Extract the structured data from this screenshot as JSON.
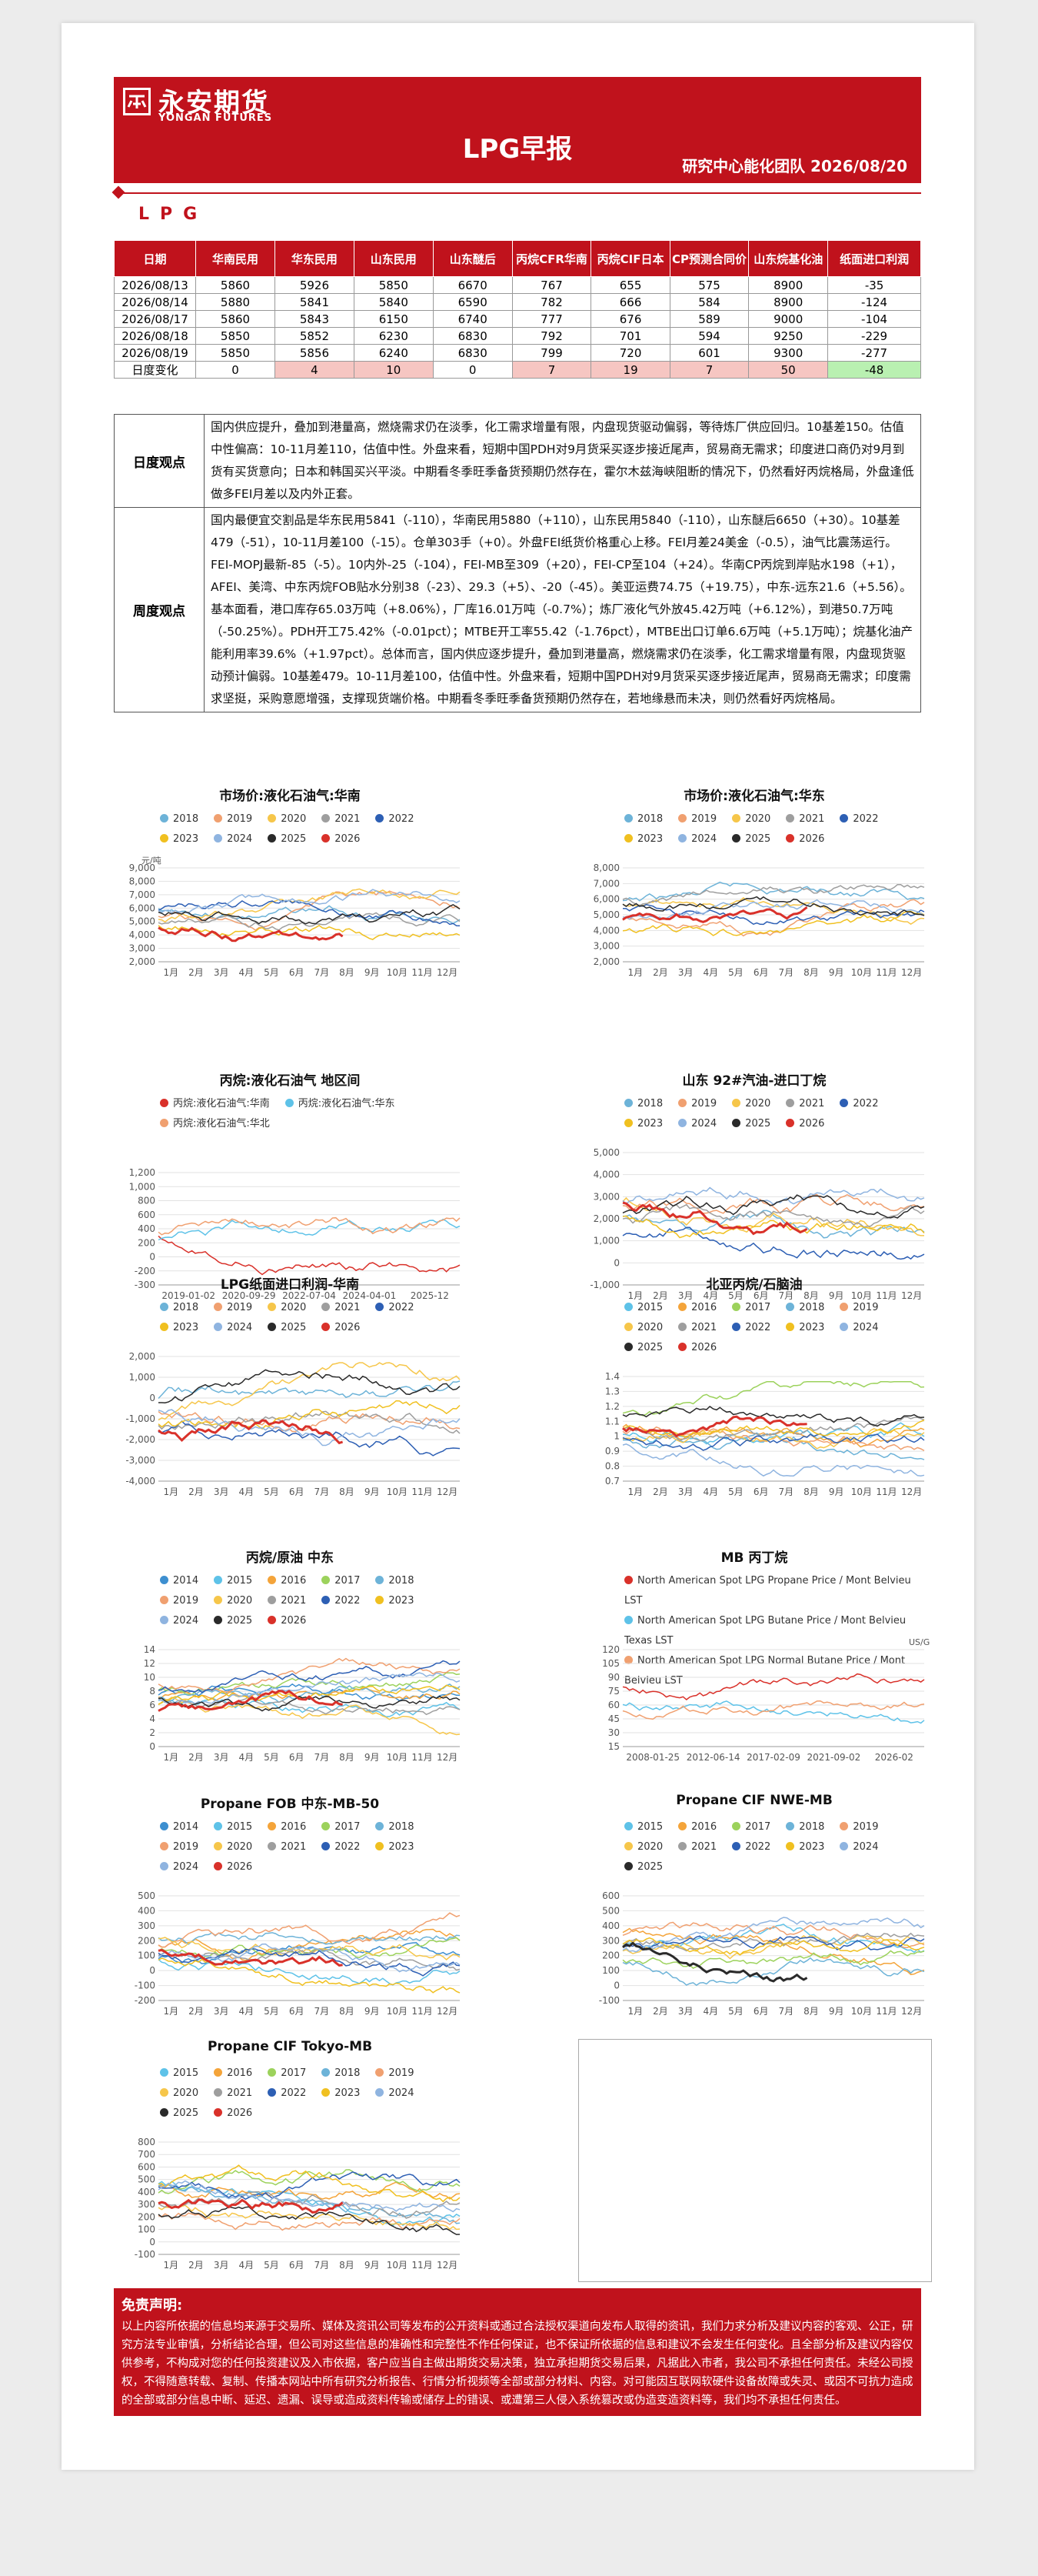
{
  "header": {
    "brand_cn": "永安期货",
    "brand_en": "YONGAN FUTURES",
    "title": "LPG早报",
    "subtitle": "研究中心能化团队 2026/08/20"
  },
  "section": "LPG",
  "table": {
    "headers": [
      "日期",
      "华南民用",
      "华东民用",
      "山东民用",
      "山东醚后",
      "丙烷CFR华南",
      "丙烷CIF日本",
      "CP预测合同价",
      "山东烷基化油",
      "纸面进口利润"
    ],
    "rows": [
      [
        "2026/08/13",
        "5860",
        "5926",
        "5850",
        "6670",
        "767",
        "655",
        "575",
        "8900",
        "-35"
      ],
      [
        "2026/08/14",
        "5880",
        "5841",
        "5840",
        "6590",
        "782",
        "666",
        "584",
        "8900",
        "-124"
      ],
      [
        "2026/08/17",
        "5860",
        "5843",
        "6150",
        "6740",
        "777",
        "676",
        "589",
        "9000",
        "-104"
      ],
      [
        "2026/08/18",
        "5850",
        "5852",
        "6230",
        "6830",
        "792",
        "701",
        "594",
        "9250",
        "-229"
      ],
      [
        "2026/08/19",
        "5850",
        "5856",
        "6240",
        "6830",
        "799",
        "720",
        "601",
        "9300",
        "-277"
      ]
    ],
    "change": [
      "日度变化",
      "0",
      "4",
      "10",
      "0",
      "7",
      "19",
      "7",
      "50",
      "-48"
    ]
  },
  "views": {
    "daily_label": "日度观点",
    "daily_text": "国内供应提升，叠加到港量高，燃烧需求仍在淡季，化工需求增量有限，内盘现货驱动偏弱，等待炼厂供应回归。10基差150。估值中性偏高：10-11月差110，估值中性。外盘来看，短期中国PDH对9月货采买逐步接近尾声，贸易商无需求；印度进口商仍对9月到货有买货意向；日本和韩国买兴平淡。中期看冬季旺季备货预期仍然存在，霍尔木兹海峡阻断的情况下，仍然看好丙烷格局，外盘逢低做多FEI月差以及内外正套。",
    "weekly_label": "周度观点",
    "weekly_text": "国内最便宜交割品是华东民用5841（-110），华南民用5880（+110），山东民用5840（-110），山东醚后6650（+30）。10基差479（-51），10-11月差100（-15）。仓单303手（+0）。外盘FEI纸货价格重心上移。FEI月差24美金（-0.5），油气比震荡运行。FEI-MOPJ最新-85（-5）。10内外-25（-104），FEI-MB至309（+20），FEI-CP至104（+24）。华南CP丙烷到岸贴水198（+1），AFEI、美湾、中东丙烷FOB贴水分别38（-23）、29.3（+5）、-20（-45）。美亚运费74.75（+19.75），中东-远东21.6（+5.56）。基本面看，港口库存65.03万吨（+8.06%），厂库16.01万吨（-0.7%）；炼厂液化气外放45.42万吨（+6.12%），到港50.7万吨（-50.25%）。PDH开工75.42%（-0.01pct）；MTBE开工率55.42（-1.76pct），MTBE出口订单6.6万吨（+5.1万吨）；烷基化油产能利用率39.6%（+1.97pct）。总体而言，国内供应逐步提升，叠加到港量高，燃烧需求仍在淡季，化工需求增量有限，内盘现货驱动预计偏弱。10基差479。10-11月差100，估值中性。外盘来看，短期中国PDH对9月货采买逐步接近尾声，贸易商无需求；印度需求坚挺，采购意愿增强，支撑现货端价格。中期看冬季旺季备货预期仍然存在，若地缘悬而未决，则仍然看好丙烷格局。"
  },
  "palette": {
    "2014": "#3d8fd0",
    "2015": "#5ec2e8",
    "2016": "#f4a43a",
    "2017": "#9cd25c",
    "2018": "#6db3d8",
    "2019": "#f0a070",
    "2020": "#f6c64a",
    "2021": "#9e9e9e",
    "2022": "#2d5fb4",
    "2023": "#f0c020",
    "2024": "#8fb4e0",
    "2025": "#2a2a2a",
    "2026": "#d9312a"
  },
  "months": [
    "1月",
    "2月",
    "3月",
    "4月",
    "5月",
    "6月",
    "7月",
    "8月",
    "9月",
    "10月",
    "11月",
    "12月"
  ],
  "charts": [
    {
      "title": "市场价:液化石油气:华南",
      "unit": "元/吨",
      "legend": [
        "2018",
        "2019",
        "2020",
        "2021",
        "2022",
        "2023",
        "2024",
        "2025",
        "2026"
      ],
      "yticks": [
        "9,000",
        "8,000",
        "7,000",
        "6,000",
        "5,000",
        "4,000",
        "3,000",
        "2,000"
      ],
      "xticks": "months"
    },
    {
      "title": "市场价:液化石油气:华东",
      "unit": "",
      "legend": [
        "2018",
        "2019",
        "2020",
        "2021",
        "2022",
        "2023",
        "2024",
        "2025",
        "2026"
      ],
      "yticks": [
        "8,000",
        "7,000",
        "6,000",
        "5,000",
        "4,000",
        "3,000",
        "2,000"
      ],
      "xticks": "months"
    },
    {
      "title": "丙烷:液化石油气 地区间",
      "unit": "",
      "legend": [
        "丙烷:液化石油气:华南",
        "丙烷:液化石油气:华东",
        "丙烷:液化石油气:华北"
      ],
      "yticks": [
        "1,200",
        "1,000",
        "800",
        "600",
        "400",
        "200",
        "0",
        "-200",
        "-300"
      ],
      "xticks": [
        "2019-01-02",
        "2020-09-29",
        "2022-07-04",
        "2024-04-01",
        "2025-12"
      ]
    },
    {
      "title": "山东 92#汽油-进口丁烷",
      "unit": "",
      "legend": [
        "2018",
        "2019",
        "2020",
        "2021",
        "2022",
        "2023",
        "2024",
        "2025",
        "2026"
      ],
      "yticks": [
        "5,000",
        "4,000",
        "3,000",
        "2,000",
        "1,000",
        "0",
        "-1,000"
      ],
      "xticks": "months"
    },
    {
      "title": "LPG纸面进口利润-华南",
      "unit": "",
      "legend": [
        "2018",
        "2019",
        "2020",
        "2021",
        "2022",
        "2023",
        "2024",
        "2025",
        "2026"
      ],
      "yticks": [
        "2,000",
        "1,000",
        "0",
        "-1,000",
        "-2,000",
        "-3,000",
        "-4,000"
      ],
      "xticks": "months"
    },
    {
      "title": "北亚丙烷/石脑油",
      "unit": "",
      "legend": [
        "2015",
        "2016",
        "2017",
        "2018",
        "2019",
        "2020",
        "2021",
        "2022",
        "2023",
        "2024",
        "2025",
        "2026"
      ],
      "yticks": [
        "1.4",
        "1.3",
        "1.2",
        "1.1",
        "1",
        "0.9",
        "0.8",
        "0.7"
      ],
      "xticks": "months"
    },
    {
      "title": "丙烷/原油 中东",
      "unit": "",
      "legend": [
        "2014",
        "2015",
        "2016",
        "2017",
        "2018",
        "2019",
        "2020",
        "2021",
        "2022",
        "2023",
        "2024",
        "2025",
        "2026"
      ],
      "yticks": [
        "14",
        "12",
        "10",
        "8",
        "6",
        "4",
        "2",
        "0"
      ],
      "xticks": "months"
    },
    {
      "title": "MB 丙丁烷",
      "unit": "US/Gal",
      "legend": [
        "North American Spot LPG Propane Price / Mont Belvieu LST",
        "North American Spot LPG Butane Price / Mont Belvieu Texas LST",
        "North American Spot LPG Normal Butane Price / Mont Belvieu LST"
      ],
      "yticks": [
        "120",
        "105",
        "90",
        "75",
        "60",
        "45",
        "30",
        "15"
      ],
      "xticks": [
        "2008-01-25",
        "2012-06-14",
        "2017-02-09",
        "2021-09-02",
        "2026-02"
      ]
    },
    {
      "title": "Propane FOB 中东-MB-50",
      "unit": "",
      "legend": [
        "2014",
        "2015",
        "2016",
        "2017",
        "2018",
        "2019",
        "2020",
        "2021",
        "2022",
        "2023",
        "2024",
        "2026"
      ],
      "yticks": [
        "500",
        "400",
        "300",
        "200",
        "100",
        "0",
        "-100",
        "-200"
      ],
      "xticks": "months"
    },
    {
      "title": "Propane CIF NWE-MB",
      "unit": "",
      "legend": [
        "2015",
        "2016",
        "2017",
        "2018",
        "2019",
        "2020",
        "2021",
        "2022",
        "2023",
        "2024",
        "2025"
      ],
      "yticks": [
        "600",
        "500",
        "400",
        "300",
        "200",
        "100",
        "0",
        "-100"
      ],
      "xticks": "months"
    },
    {
      "title": "Propane CIF Tokyo-MB",
      "unit": "",
      "legend": [
        "2015",
        "2016",
        "2017",
        "2018",
        "2019",
        "2020",
        "2021",
        "2022",
        "2023",
        "2024",
        "2025",
        "2026"
      ],
      "yticks": [
        "800",
        "700",
        "600",
        "500",
        "400",
        "300",
        "200",
        "100",
        "0",
        "-100"
      ],
      "xticks": "months"
    }
  ],
  "disclaimer": {
    "title": "免责声明:",
    "text": "以上内容所依据的信息均来源于交易所、媒体及资讯公司等发布的公开资料或通过合法授权渠道向发布人取得的资讯，我们力求分析及建议内容的客观、公正，研究方法专业审慎，分析结论合理，但公司对这些信息的准确性和完整性不作任何保证，也不保证所依据的信息和建议不会发生任何变化。且全部分析及建议内容仅供参考，不构成对您的任何投资建议及入市依据，客户应当自主做出期货交易决策，独立承担期货交易后果，凡据此入市者，我公司不承担任何责任。未经公司授权，不得随意转载、复制、传播本网站中所有研究分析报告、行情分析视频等全部或部分材料、内容。对可能因互联网软硬件设备故障或失灵、或因不可抗力造成的全部或部分信息中断、延迟、遗漏、误导或造成资料传输或储存上的错误、或遭第三人侵入系统篡改或伪造变造资料等，我们均不承担任何责任。"
  }
}
